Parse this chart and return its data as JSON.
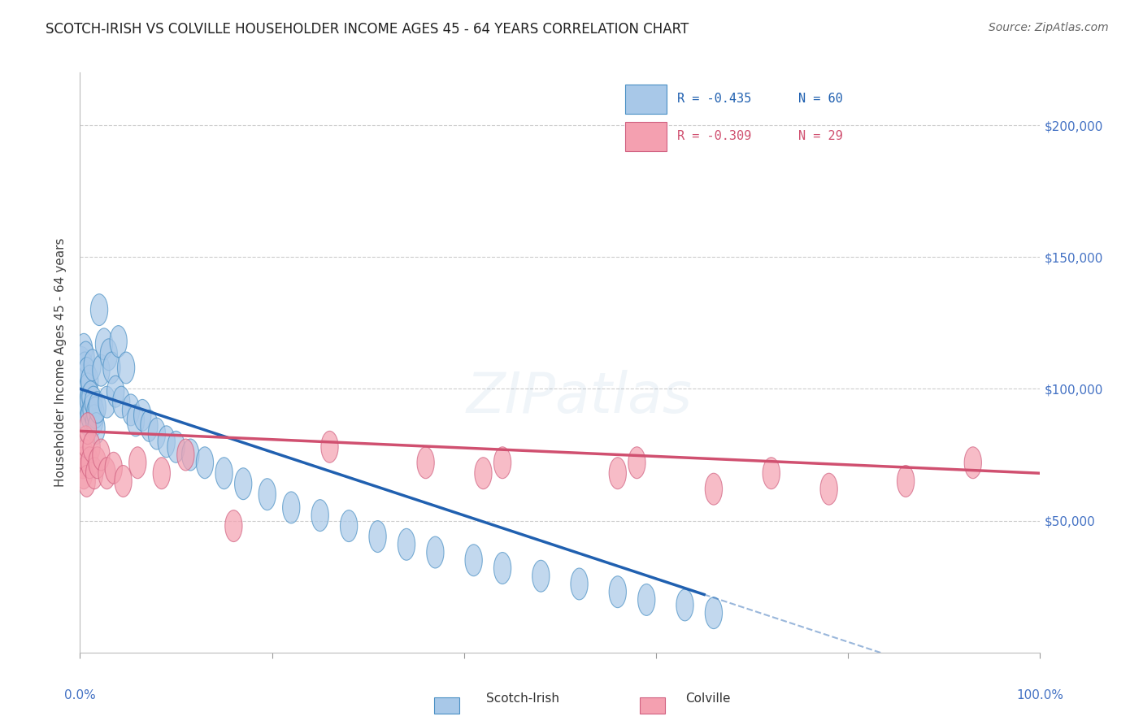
{
  "title": "SCOTCH-IRISH VS COLVILLE HOUSEHOLDER INCOME AGES 45 - 64 YEARS CORRELATION CHART",
  "source": "Source: ZipAtlas.com",
  "ylabel": "Householder Income Ages 45 - 64 years",
  "y_tick_labels": [
    "$50,000",
    "$100,000",
    "$150,000",
    "$200,000"
  ],
  "y_tick_values": [
    50000,
    100000,
    150000,
    200000
  ],
  "ylim": [
    0,
    220000
  ],
  "xlim": [
    0.0,
    1.0
  ],
  "legend1_r": "R = -0.435",
  "legend1_n": "N = 60",
  "legend2_r": "R = -0.309",
  "legend2_n": "N = 29",
  "blue_fill": "#a8c8e8",
  "blue_edge": "#4a90c4",
  "pink_fill": "#f4a0b0",
  "pink_edge": "#d06080",
  "line_blue": "#2060b0",
  "line_pink": "#d05070",
  "scotch_irish_x": [
    0.002,
    0.003,
    0.003,
    0.004,
    0.004,
    0.005,
    0.005,
    0.006,
    0.006,
    0.007,
    0.007,
    0.008,
    0.008,
    0.009,
    0.01,
    0.01,
    0.011,
    0.012,
    0.013,
    0.014,
    0.015,
    0.016,
    0.017,
    0.018,
    0.02,
    0.022,
    0.025,
    0.028,
    0.03,
    0.033,
    0.037,
    0.04,
    0.043,
    0.048,
    0.053,
    0.058,
    0.065,
    0.072,
    0.08,
    0.09,
    0.1,
    0.115,
    0.13,
    0.15,
    0.17,
    0.195,
    0.22,
    0.25,
    0.28,
    0.31,
    0.34,
    0.37,
    0.41,
    0.44,
    0.48,
    0.52,
    0.56,
    0.59,
    0.63,
    0.66
  ],
  "scotch_irish_y": [
    110000,
    105000,
    98000,
    115000,
    102000,
    108000,
    95000,
    112000,
    99000,
    106000,
    93000,
    100000,
    88000,
    96000,
    103000,
    90000,
    97000,
    92000,
    109000,
    95000,
    88000,
    91000,
    85000,
    93000,
    130000,
    107000,
    117000,
    95000,
    113000,
    108000,
    99000,
    118000,
    95000,
    108000,
    92000,
    88000,
    90000,
    86000,
    83000,
    80000,
    78000,
    75000,
    72000,
    68000,
    64000,
    60000,
    55000,
    52000,
    48000,
    44000,
    41000,
    38000,
    35000,
    32000,
    29000,
    26000,
    23000,
    20000,
    18000,
    15000
  ],
  "colville_x": [
    0.003,
    0.004,
    0.005,
    0.006,
    0.007,
    0.008,
    0.01,
    0.012,
    0.015,
    0.018,
    0.022,
    0.028,
    0.035,
    0.045,
    0.06,
    0.085,
    0.11,
    0.16,
    0.26,
    0.36,
    0.42,
    0.44,
    0.56,
    0.58,
    0.66,
    0.72,
    0.78,
    0.86,
    0.93
  ],
  "colville_y": [
    72000,
    68000,
    75000,
    80000,
    65000,
    85000,
    72000,
    78000,
    68000,
    72000,
    75000,
    68000,
    70000,
    65000,
    72000,
    68000,
    75000,
    48000,
    78000,
    72000,
    68000,
    72000,
    68000,
    72000,
    62000,
    68000,
    62000,
    65000,
    72000
  ],
  "line_blue_x_end": 0.65,
  "line_blue_x_dash_end": 1.0,
  "line_pink_x_end": 1.0,
  "blue_intercept": 100000,
  "blue_slope": -120000,
  "pink_intercept": 84000,
  "pink_slope": -16000,
  "watermark": "ZIPatlas",
  "watermark_color": "#c8d8e8",
  "watermark_alpha": 0.5
}
